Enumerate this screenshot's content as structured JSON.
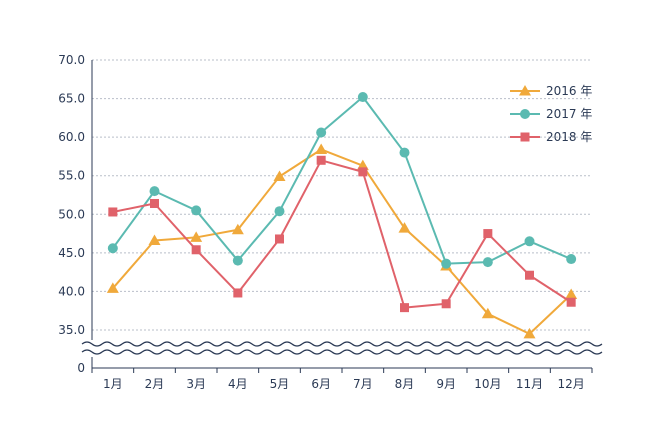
{
  "chart_data": {
    "type": "line",
    "categories": [
      "1月",
      "2月",
      "3月",
      "4月",
      "5月",
      "6月",
      "7月",
      "8月",
      "9月",
      "10月",
      "11月",
      "12月"
    ],
    "series": [
      {
        "name": "2016 年",
        "color": "#F0A93B",
        "marker": "triangle",
        "values": [
          40.4,
          46.6,
          47.0,
          48.0,
          54.9,
          58.4,
          56.3,
          48.2,
          43.3,
          37.1,
          34.5,
          39.6
        ]
      },
      {
        "name": "2017 年",
        "color": "#5BBAB1",
        "marker": "circle",
        "values": [
          45.6,
          53.0,
          50.5,
          44.0,
          50.4,
          60.6,
          65.2,
          58.0,
          43.6,
          43.8,
          46.5,
          44.2
        ]
      },
      {
        "name": "2018 年",
        "color": "#E0626A",
        "marker": "square",
        "values": [
          50.3,
          51.4,
          45.4,
          39.8,
          46.8,
          57.0,
          55.5,
          37.9,
          38.4,
          47.5,
          42.1,
          38.6
        ]
      }
    ],
    "y_ticks": [
      "70.0",
      "65.0",
      "60.0",
      "55.0",
      "50.0",
      "45.0",
      "40.0",
      "35.0"
    ],
    "y_zero_label": "0",
    "ylim": [
      35,
      70
    ],
    "axis_break": true,
    "grid": "horizontal-dashed",
    "legend_position": "top-right",
    "title": "",
    "xlabel": "",
    "ylabel": ""
  },
  "colors": {
    "axis": "#2b3a55",
    "grid": "#b9bfc9",
    "text": "#2b3a55"
  }
}
